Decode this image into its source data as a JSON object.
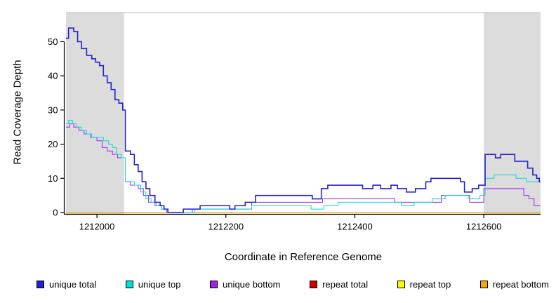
{
  "chart_data": {
    "type": "line",
    "title": "",
    "xlabel": "Coordinate in Reference Genome",
    "ylabel": "Read Coverage Depth",
    "xlim": [
      1211952,
      1212688
    ],
    "ylim": [
      0,
      58.5
    ],
    "x_ticks": [
      1212000,
      1212200,
      1212400,
      1212600
    ],
    "y_ticks": [
      0,
      10,
      20,
      30,
      40,
      50
    ],
    "step": "after",
    "grid": false,
    "background": "#ffffff",
    "shading_color": "#dcdcdc",
    "axis_color": "#000000",
    "top_border_color": "#bbbbbb",
    "shaded_regions": [
      {
        "from": 1211952,
        "to": 1212042
      },
      {
        "from": 1212600,
        "to": 1212688
      }
    ],
    "series": [
      {
        "name": "repeat total",
        "color": "#cd0000",
        "width": 1,
        "points": [
          [
            1211952,
            0
          ],
          [
            1212688,
            0
          ]
        ]
      },
      {
        "name": "repeat top",
        "color": "#ffff00",
        "width": 1,
        "points": [
          [
            1211952,
            0
          ],
          [
            1212688,
            0
          ]
        ]
      },
      {
        "name": "repeat bottom",
        "color": "#ffa500",
        "width": 1.3,
        "points": [
          [
            1211952,
            0
          ],
          [
            1212688,
            0
          ]
        ]
      },
      {
        "name": "unique bottom",
        "color": "#a020f0",
        "width": 1,
        "points": [
          [
            1211952,
            25
          ],
          [
            1211958,
            26
          ],
          [
            1211964,
            25
          ],
          [
            1211972,
            24
          ],
          [
            1211980,
            23
          ],
          [
            1211990,
            22
          ],
          [
            1212000,
            21
          ],
          [
            1212008,
            19
          ],
          [
            1212016,
            18
          ],
          [
            1212024,
            17
          ],
          [
            1212032,
            16
          ],
          [
            1212044,
            9
          ],
          [
            1212052,
            8
          ],
          [
            1212064,
            7
          ],
          [
            1212072,
            5
          ],
          [
            1212080,
            3
          ],
          [
            1212090,
            2
          ],
          [
            1212100,
            1
          ],
          [
            1212108,
            0
          ],
          [
            1212148,
            1
          ],
          [
            1212240,
            3
          ],
          [
            1212332,
            3
          ],
          [
            1212350,
            4
          ],
          [
            1212442,
            4
          ],
          [
            1212462,
            3
          ],
          [
            1212520,
            3
          ],
          [
            1212534,
            5
          ],
          [
            1212562,
            5
          ],
          [
            1212578,
            3
          ],
          [
            1212600,
            7
          ],
          [
            1212652,
            7
          ],
          [
            1212662,
            5
          ],
          [
            1212670,
            4
          ],
          [
            1212678,
            2
          ],
          [
            1212686,
            2
          ]
        ]
      },
      {
        "name": "unique top",
        "color": "#00dddd",
        "width": 1,
        "points": [
          [
            1211952,
            26
          ],
          [
            1211956,
            27
          ],
          [
            1211962,
            26
          ],
          [
            1211968,
            25
          ],
          [
            1211976,
            24
          ],
          [
            1211984,
            23
          ],
          [
            1211992,
            22
          ],
          [
            1212002,
            22
          ],
          [
            1212010,
            21
          ],
          [
            1212018,
            20
          ],
          [
            1212024,
            19
          ],
          [
            1212030,
            17
          ],
          [
            1212038,
            16
          ],
          [
            1212044,
            9
          ],
          [
            1212058,
            8
          ],
          [
            1212068,
            6
          ],
          [
            1212076,
            4
          ],
          [
            1212084,
            3
          ],
          [
            1212092,
            2
          ],
          [
            1212100,
            1
          ],
          [
            1212110,
            0
          ],
          [
            1212152,
            1
          ],
          [
            1212240,
            2
          ],
          [
            1212300,
            2
          ],
          [
            1212332,
            1
          ],
          [
            1212352,
            2
          ],
          [
            1212374,
            3
          ],
          [
            1212452,
            3
          ],
          [
            1212472,
            2
          ],
          [
            1212492,
            3
          ],
          [
            1212520,
            4
          ],
          [
            1212540,
            5
          ],
          [
            1212576,
            4
          ],
          [
            1212594,
            5
          ],
          [
            1212602,
            10
          ],
          [
            1212616,
            11
          ],
          [
            1212650,
            10
          ],
          [
            1212666,
            9
          ],
          [
            1212686,
            9
          ]
        ]
      },
      {
        "name": "unique total",
        "color": "#2222cc",
        "width": 1.6,
        "points": [
          [
            1211952,
            51
          ],
          [
            1211956,
            54
          ],
          [
            1211964,
            53
          ],
          [
            1211970,
            50
          ],
          [
            1211976,
            48
          ],
          [
            1211984,
            46
          ],
          [
            1211992,
            45
          ],
          [
            1211998,
            44
          ],
          [
            1212004,
            43
          ],
          [
            1212010,
            40
          ],
          [
            1212016,
            38
          ],
          [
            1212022,
            36
          ],
          [
            1212028,
            33
          ],
          [
            1212034,
            32
          ],
          [
            1212040,
            30
          ],
          [
            1212044,
            18
          ],
          [
            1212052,
            17
          ],
          [
            1212058,
            14
          ],
          [
            1212064,
            12
          ],
          [
            1212070,
            9
          ],
          [
            1212076,
            7
          ],
          [
            1212082,
            5
          ],
          [
            1212090,
            3
          ],
          [
            1212098,
            2
          ],
          [
            1212104,
            1
          ],
          [
            1212110,
            0
          ],
          [
            1212128,
            0
          ],
          [
            1212134,
            1
          ],
          [
            1212160,
            2
          ],
          [
            1212198,
            2
          ],
          [
            1212206,
            1
          ],
          [
            1212214,
            2
          ],
          [
            1212230,
            3
          ],
          [
            1212246,
            5
          ],
          [
            1212322,
            5
          ],
          [
            1212334,
            4
          ],
          [
            1212348,
            7
          ],
          [
            1212358,
            8
          ],
          [
            1212400,
            8
          ],
          [
            1212412,
            7
          ],
          [
            1212428,
            8
          ],
          [
            1212440,
            7
          ],
          [
            1212456,
            8
          ],
          [
            1212466,
            7
          ],
          [
            1212480,
            6
          ],
          [
            1212494,
            7
          ],
          [
            1212510,
            9
          ],
          [
            1212518,
            10
          ],
          [
            1212556,
            10
          ],
          [
            1212564,
            9
          ],
          [
            1212570,
            6
          ],
          [
            1212582,
            7
          ],
          [
            1212592,
            8
          ],
          [
            1212602,
            17
          ],
          [
            1212618,
            16
          ],
          [
            1212626,
            17
          ],
          [
            1212648,
            15
          ],
          [
            1212668,
            13
          ],
          [
            1212676,
            11
          ],
          [
            1212682,
            10
          ],
          [
            1212686,
            9
          ]
        ]
      }
    ],
    "legend": [
      {
        "label": "unique total",
        "color": "#2222cc"
      },
      {
        "label": "unique top",
        "color": "#00dddd"
      },
      {
        "label": "unique bottom",
        "color": "#a020f0"
      },
      {
        "label": "repeat total",
        "color": "#cd0000"
      },
      {
        "label": "repeat top",
        "color": "#ffff00"
      },
      {
        "label": "repeat bottom",
        "color": "#ffa500"
      }
    ]
  }
}
